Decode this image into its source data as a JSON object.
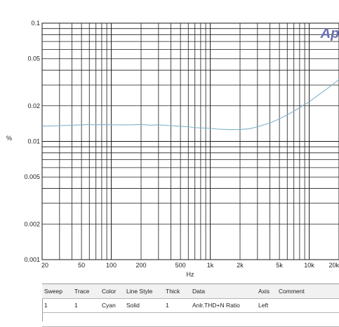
{
  "chart_data": {
    "type": "line",
    "title": "",
    "xlabel": "Hz",
    "ylabel": "%",
    "xscale": "log",
    "yscale": "log",
    "xlim": [
      20,
      20000
    ],
    "ylim": [
      0.001,
      0.1
    ],
    "grid": true,
    "x_tick_labels": [
      "20",
      "50",
      "100",
      "200",
      "500",
      "1k",
      "2k",
      "5k",
      "10k",
      "20k"
    ],
    "x_tick_values": [
      20,
      50,
      100,
      200,
      500,
      1000,
      2000,
      5000,
      10000,
      20000
    ],
    "y_tick_labels": [
      "0.1",
      "0.05",
      "0.02",
      "0.01",
      "0.005",
      "0.002",
      "0.001"
    ],
    "y_tick_values": [
      0.1,
      0.05,
      0.02,
      0.01,
      0.005,
      0.002,
      0.001
    ],
    "series": [
      {
        "color": "#7fb3c8",
        "x": [
          20,
          25,
          30,
          40,
          50,
          60,
          70,
          80,
          100,
          120,
          150,
          200,
          250,
          300,
          400,
          500,
          600,
          700,
          800,
          1000,
          1200,
          1500,
          2000,
          2500,
          3000,
          4000,
          5000,
          6000,
          7000,
          8000,
          10000,
          12000,
          15000,
          20000
        ],
        "y": [
          0.0135,
          0.0135,
          0.0136,
          0.0137,
          0.0138,
          0.0139,
          0.0138,
          0.0139,
          0.0138,
          0.0138,
          0.0138,
          0.0139,
          0.0137,
          0.0138,
          0.0136,
          0.0134,
          0.0133,
          0.0131,
          0.013,
          0.0129,
          0.0127,
          0.0126,
          0.0126,
          0.0128,
          0.0133,
          0.0143,
          0.0155,
          0.0168,
          0.018,
          0.0193,
          0.0216,
          0.0242,
          0.0277,
          0.0333
        ]
      }
    ]
  },
  "logo": {
    "text": "Ap",
    "color": "#6b6fb0"
  },
  "legend_table": {
    "headers": [
      "Sweep",
      "Trace",
      "Color",
      "Line Style",
      "Thick",
      "Data",
      "Axis",
      "Comment"
    ],
    "rows": [
      [
        "1",
        "1",
        "Cyan",
        "Solid",
        "1",
        "Anlr.THD+N Ratio",
        "Left",
        ""
      ]
    ]
  }
}
